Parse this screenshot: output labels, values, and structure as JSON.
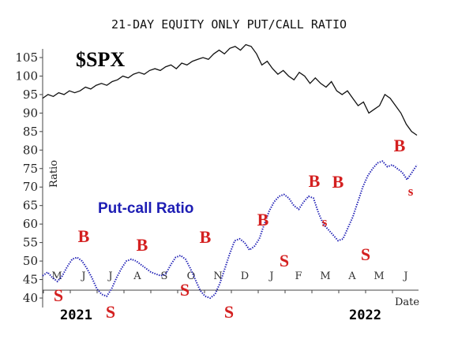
{
  "chart_data": {
    "type": "line",
    "title": "21-DAY EQUITY ONLY PUT/CALL RATIO",
    "ylabel": "Ratio",
    "xlabel": "Date",
    "y_ticks": [
      "40",
      "45",
      "50",
      "55",
      "60",
      "65",
      "70",
      "75",
      "80",
      "85",
      "90",
      "95",
      "100",
      "105"
    ],
    "ylim": [
      40,
      108
    ],
    "month_ticks": [
      "M",
      "J",
      "J",
      "A",
      "S",
      "O",
      "N",
      "D",
      "J",
      "F",
      "M",
      "A",
      "M",
      "J"
    ],
    "year_labels": [
      "2021",
      "2022"
    ],
    "grid": false,
    "series": [
      {
        "name": "$SPX",
        "values": [
          94,
          95,
          94.5,
          95.5,
          95,
          96,
          95.5,
          96,
          97,
          96.5,
          97.5,
          98,
          97.5,
          98.5,
          99,
          100,
          99.5,
          100.5,
          101,
          100.5,
          101.5,
          102,
          101.5,
          102.5,
          103,
          102,
          103.5,
          103,
          104,
          104.5,
          105,
          104.5,
          106,
          107,
          106,
          107.5,
          108,
          107,
          108.5,
          108,
          106,
          103,
          104,
          102,
          100.5,
          101.5,
          100,
          99,
          101,
          100,
          98,
          99.5,
          98,
          97,
          98.5,
          96,
          95,
          96,
          94,
          92,
          93,
          90,
          91,
          92,
          95,
          94,
          92,
          90,
          87,
          85,
          84
        ]
      },
      {
        "name": "Put-call Ratio",
        "values": [
          46,
          47,
          45.5,
          44.5,
          46,
          48.5,
          50.5,
          51,
          50,
          48,
          45.5,
          42.5,
          41,
          40.5,
          42.5,
          45.5,
          48,
          50,
          50.5,
          50,
          49,
          48,
          47,
          46.5,
          46,
          46.5,
          49,
          51,
          51.5,
          50.5,
          48,
          45,
          42,
          40.5,
          40,
          41,
          44,
          48,
          52,
          55.5,
          56,
          55,
          53,
          54,
          56,
          60,
          63.5,
          66,
          67.5,
          68,
          67,
          65,
          64,
          66,
          67.5,
          67,
          63,
          60,
          58.5,
          57,
          55.5,
          56,
          59,
          62,
          66,
          70,
          73,
          75,
          76.5,
          77,
          75.5,
          76,
          75,
          74,
          72,
          74,
          76
        ]
      }
    ]
  },
  "signals": [
    {
      "letter": "S",
      "size": "large"
    },
    {
      "letter": "B",
      "size": "large"
    },
    {
      "letter": "S",
      "size": "large"
    },
    {
      "letter": "B",
      "size": "large"
    },
    {
      "letter": "S",
      "size": "large"
    },
    {
      "letter": "B",
      "size": "large"
    },
    {
      "letter": "S",
      "size": "large"
    },
    {
      "letter": "B",
      "size": "large"
    },
    {
      "letter": "S",
      "size": "large"
    },
    {
      "letter": "B",
      "size": "large"
    },
    {
      "letter": "s",
      "size": "small"
    },
    {
      "letter": "B",
      "size": "large"
    },
    {
      "letter": "S",
      "size": "large"
    },
    {
      "letter": "B",
      "size": "large"
    },
    {
      "letter": "s",
      "size": "small"
    }
  ],
  "labels": {
    "spx": "$SPX",
    "pcr": "Put-call Ratio"
  },
  "colors": {
    "spx_line": "#111111",
    "pcr_line": "#1d1db4",
    "signal": "#d42020"
  }
}
